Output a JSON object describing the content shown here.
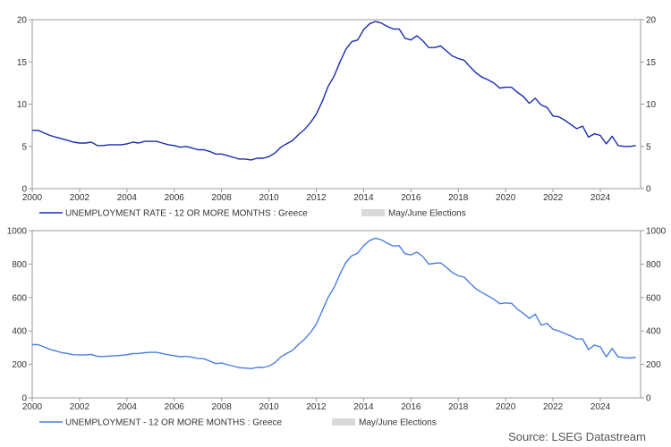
{
  "source": "Source: LSEG Datastream",
  "chart_data": [
    {
      "type": "line",
      "title": "",
      "xlabel": "",
      "ylabel": "",
      "xlim": [
        2000,
        2025.7
      ],
      "ylim": [
        0,
        20
      ],
      "x_ticks": [
        "2000",
        "2002",
        "2004",
        "2006",
        "2008",
        "2010",
        "2012",
        "2014",
        "2016",
        "2018",
        "2020",
        "2022",
        "2024"
      ],
      "y_ticks": [
        "0",
        "5",
        "10",
        "15",
        "20"
      ],
      "grid": false,
      "legend_position": "bottom-left",
      "series": [
        {
          "name": "UNEMPLOYMENT RATE - 12 OR MORE MONTHS : Greece",
          "color": "#1a2bb0",
          "points": [
            [
              2000.0,
              6.9
            ],
            [
              2000.25,
              6.9
            ],
            [
              2000.5,
              6.6
            ],
            [
              2000.75,
              6.3
            ],
            [
              2001.0,
              6.1
            ],
            [
              2001.25,
              5.9
            ],
            [
              2001.5,
              5.7
            ],
            [
              2001.75,
              5.5
            ],
            [
              2002.0,
              5.4
            ],
            [
              2002.25,
              5.4
            ],
            [
              2002.5,
              5.5
            ],
            [
              2002.75,
              5.1
            ],
            [
              2003.0,
              5.1
            ],
            [
              2003.25,
              5.2
            ],
            [
              2003.5,
              5.2
            ],
            [
              2003.75,
              5.2
            ],
            [
              2004.0,
              5.3
            ],
            [
              2004.25,
              5.5
            ],
            [
              2004.5,
              5.4
            ],
            [
              2004.75,
              5.6
            ],
            [
              2005.0,
              5.6
            ],
            [
              2005.25,
              5.6
            ],
            [
              2005.5,
              5.4
            ],
            [
              2005.75,
              5.2
            ],
            [
              2006.0,
              5.1
            ],
            [
              2006.25,
              4.9
            ],
            [
              2006.5,
              5.0
            ],
            [
              2006.75,
              4.8
            ],
            [
              2007.0,
              4.6
            ],
            [
              2007.25,
              4.6
            ],
            [
              2007.5,
              4.4
            ],
            [
              2007.75,
              4.1
            ],
            [
              2008.0,
              4.1
            ],
            [
              2008.25,
              3.9
            ],
            [
              2008.5,
              3.7
            ],
            [
              2008.75,
              3.5
            ],
            [
              2009.0,
              3.5
            ],
            [
              2009.25,
              3.4
            ],
            [
              2009.5,
              3.6
            ],
            [
              2009.75,
              3.6
            ],
            [
              2010.0,
              3.8
            ],
            [
              2010.25,
              4.2
            ],
            [
              2010.5,
              4.9
            ],
            [
              2010.75,
              5.3
            ],
            [
              2011.0,
              5.7
            ],
            [
              2011.25,
              6.4
            ],
            [
              2011.5,
              7.0
            ],
            [
              2011.75,
              7.8
            ],
            [
              2012.0,
              8.8
            ],
            [
              2012.25,
              10.3
            ],
            [
              2012.5,
              12.1
            ],
            [
              2012.75,
              13.3
            ],
            [
              2013.0,
              15.0
            ],
            [
              2013.25,
              16.5
            ],
            [
              2013.5,
              17.4
            ],
            [
              2013.75,
              17.6
            ],
            [
              2014.0,
              18.8
            ],
            [
              2014.25,
              19.5
            ],
            [
              2014.5,
              19.8
            ],
            [
              2014.75,
              19.6
            ],
            [
              2015.0,
              19.2
            ],
            [
              2015.25,
              18.9
            ],
            [
              2015.5,
              18.9
            ],
            [
              2015.75,
              17.8
            ],
            [
              2016.0,
              17.6
            ],
            [
              2016.25,
              18.1
            ],
            [
              2016.5,
              17.5
            ],
            [
              2016.75,
              16.7
            ],
            [
              2017.0,
              16.7
            ],
            [
              2017.25,
              16.9
            ],
            [
              2017.5,
              16.3
            ],
            [
              2017.75,
              15.7
            ],
            [
              2018.0,
              15.4
            ],
            [
              2018.25,
              15.2
            ],
            [
              2018.5,
              14.4
            ],
            [
              2018.75,
              13.7
            ],
            [
              2019.0,
              13.2
            ],
            [
              2019.25,
              12.9
            ],
            [
              2019.5,
              12.5
            ],
            [
              2019.75,
              11.9
            ],
            [
              2020.0,
              12.0
            ],
            [
              2020.25,
              12.0
            ],
            [
              2020.5,
              11.4
            ],
            [
              2020.75,
              10.9
            ],
            [
              2021.0,
              10.1
            ],
            [
              2021.25,
              10.7
            ],
            [
              2021.5,
              9.9
            ],
            [
              2021.75,
              9.6
            ],
            [
              2022.0,
              8.6
            ],
            [
              2022.25,
              8.5
            ],
            [
              2022.5,
              8.1
            ],
            [
              2022.75,
              7.6
            ],
            [
              2023.0,
              7.1
            ],
            [
              2023.25,
              7.4
            ],
            [
              2023.5,
              6.1
            ],
            [
              2023.75,
              6.5
            ],
            [
              2024.0,
              6.3
            ],
            [
              2024.25,
              5.3
            ],
            [
              2024.5,
              6.2
            ],
            [
              2024.75,
              5.1
            ],
            [
              2025.0,
              5.0
            ],
            [
              2025.25,
              5.0
            ],
            [
              2025.5,
              5.1
            ]
          ]
        },
        {
          "name": "May/June Elections",
          "color": "#d9d9d9",
          "points": []
        }
      ]
    },
    {
      "type": "line",
      "title": "",
      "xlabel": "",
      "ylabel": "",
      "xlim": [
        2000,
        2025.7
      ],
      "ylim": [
        0,
        1000
      ],
      "x_ticks": [
        "2000",
        "2002",
        "2004",
        "2006",
        "2008",
        "2010",
        "2012",
        "2014",
        "2016",
        "2018",
        "2020",
        "2022",
        "2024"
      ],
      "y_ticks": [
        "0",
        "200",
        "400",
        "600",
        "800",
        "1000"
      ],
      "grid": false,
      "legend_position": "bottom-left",
      "series": [
        {
          "name": "UNEMPLOYMENT - 12 OR MORE MONTHS : Greece",
          "color": "#4a7ee0",
          "points": [
            [
              2000.0,
              318
            ],
            [
              2000.25,
              318
            ],
            [
              2000.5,
              305
            ],
            [
              2000.75,
              290
            ],
            [
              2001.0,
              280
            ],
            [
              2001.25,
              270
            ],
            [
              2001.5,
              265
            ],
            [
              2001.75,
              258
            ],
            [
              2002.0,
              257
            ],
            [
              2002.25,
              257
            ],
            [
              2002.5,
              260
            ],
            [
              2002.75,
              248
            ],
            [
              2003.0,
              247
            ],
            [
              2003.25,
              250
            ],
            [
              2003.5,
              252
            ],
            [
              2003.75,
              254
            ],
            [
              2004.0,
              258
            ],
            [
              2004.25,
              265
            ],
            [
              2004.5,
              265
            ],
            [
              2004.75,
              270
            ],
            [
              2005.0,
              272
            ],
            [
              2005.25,
              272
            ],
            [
              2005.5,
              265
            ],
            [
              2005.75,
              258
            ],
            [
              2006.0,
              252
            ],
            [
              2006.25,
              246
            ],
            [
              2006.5,
              248
            ],
            [
              2006.75,
              243
            ],
            [
              2007.0,
              236
            ],
            [
              2007.25,
              234
            ],
            [
              2007.5,
              220
            ],
            [
              2007.75,
              205
            ],
            [
              2008.0,
              208
            ],
            [
              2008.25,
              198
            ],
            [
              2008.5,
              190
            ],
            [
              2008.75,
              180
            ],
            [
              2009.0,
              178
            ],
            [
              2009.25,
              175
            ],
            [
              2009.5,
              182
            ],
            [
              2009.75,
              182
            ],
            [
              2010.0,
              190
            ],
            [
              2010.25,
              210
            ],
            [
              2010.5,
              245
            ],
            [
              2010.75,
              265
            ],
            [
              2011.0,
              285
            ],
            [
              2011.25,
              320
            ],
            [
              2011.5,
              350
            ],
            [
              2011.75,
              390
            ],
            [
              2012.0,
              440
            ],
            [
              2012.25,
              520
            ],
            [
              2012.5,
              600
            ],
            [
              2012.75,
              660
            ],
            [
              2013.0,
              740
            ],
            [
              2013.25,
              810
            ],
            [
              2013.5,
              850
            ],
            [
              2013.75,
              865
            ],
            [
              2014.0,
              910
            ],
            [
              2014.25,
              940
            ],
            [
              2014.5,
              955
            ],
            [
              2014.75,
              945
            ],
            [
              2015.0,
              925
            ],
            [
              2015.25,
              908
            ],
            [
              2015.5,
              910
            ],
            [
              2015.75,
              862
            ],
            [
              2016.0,
              855
            ],
            [
              2016.25,
              872
            ],
            [
              2016.5,
              845
            ],
            [
              2016.75,
              800
            ],
            [
              2017.0,
              805
            ],
            [
              2017.25,
              808
            ],
            [
              2017.5,
              780
            ],
            [
              2017.75,
              750
            ],
            [
              2018.0,
              730
            ],
            [
              2018.25,
              722
            ],
            [
              2018.5,
              685
            ],
            [
              2018.75,
              652
            ],
            [
              2019.0,
              630
            ],
            [
              2019.25,
              610
            ],
            [
              2019.5,
              590
            ],
            [
              2019.75,
              563
            ],
            [
              2020.0,
              568
            ],
            [
              2020.25,
              565
            ],
            [
              2020.5,
              530
            ],
            [
              2020.75,
              505
            ],
            [
              2021.0,
              475
            ],
            [
              2021.25,
              500
            ],
            [
              2021.5,
              435
            ],
            [
              2021.75,
              445
            ],
            [
              2022.0,
              410
            ],
            [
              2022.25,
              400
            ],
            [
              2022.5,
              385
            ],
            [
              2022.75,
              370
            ],
            [
              2023.0,
              352
            ],
            [
              2023.25,
              352
            ],
            [
              2023.5,
              288
            ],
            [
              2023.75,
              315
            ],
            [
              2024.0,
              305
            ],
            [
              2024.25,
              245
            ],
            [
              2024.5,
              295
            ],
            [
              2024.75,
              245
            ],
            [
              2025.0,
              240
            ],
            [
              2025.25,
              238
            ],
            [
              2025.5,
              243
            ]
          ]
        },
        {
          "name": "May/June Elections",
          "color": "#d9d9d9",
          "points": []
        }
      ]
    }
  ]
}
